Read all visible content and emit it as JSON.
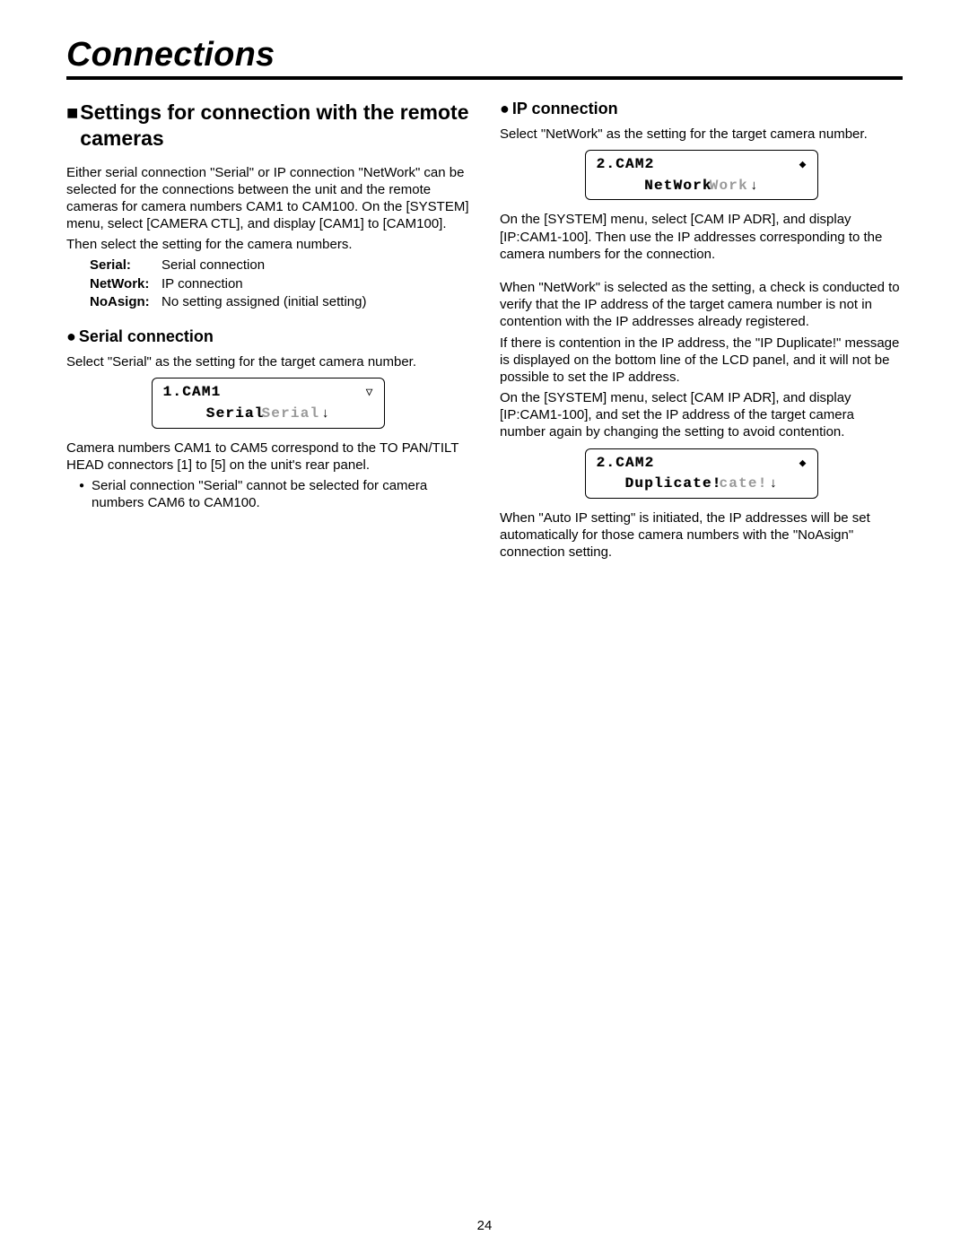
{
  "page_title": "Connections",
  "page_number": "24",
  "left": {
    "heading": "Settings for connection with the remote cameras",
    "intro": "Either serial connection \"Serial\" or IP connection \"NetWork\" can be selected for the connections between the unit and the remote cameras for camera numbers CAM1 to CAM100. On the [SYSTEM] menu, select [CAMERA CTL], and display [CAM1] to [CAM100].",
    "then_select": "Then select the setting for the camera numbers.",
    "defs": {
      "serial_k": "Serial:",
      "serial_v": "Serial connection",
      "network_k": "NetWork:",
      "network_v": "IP connection",
      "noasign_k": "NoAsign:",
      "noasign_v": "No setting assigned (initial setting)"
    },
    "sub_heading": "Serial connection",
    "serial_select": "Select \"Serial\" as the setting for the target camera number.",
    "lcd1": {
      "line1_label": "1.CAM1",
      "line1_arrow": "▽",
      "line2_main": "Serial",
      "line2_ghost": "Serial",
      "down": "↓"
    },
    "serial_para": "Camera numbers CAM1 to CAM5 correspond to the TO PAN/TILT HEAD connectors [1] to [5] on the unit's rear panel.",
    "serial_bullet": "Serial connection \"Serial\" cannot be selected for camera numbers CAM6 to CAM100."
  },
  "right": {
    "sub_heading": "IP connection",
    "ip_select": "Select \"NetWork\" as the setting for the target camera number.",
    "lcd2": {
      "line1_label": "2.CAM2",
      "line1_arrow": "◆",
      "line2_main": "NetWork",
      "line2_ghost": "Work",
      "down": "↓"
    },
    "para_a": "On the [SYSTEM] menu, select [CAM IP ADR], and display [IP:CAM1-100]. Then use the IP addresses corresponding to the camera numbers for the connection.",
    "para_b": "When \"NetWork\" is selected as the setting, a check is conducted to verify that the IP address of the target camera number is not in contention with the IP addresses already registered.",
    "para_c": "If there is contention in the IP address, the \"IP Duplicate!\" message is displayed on the bottom line of the LCD panel, and it will not be possible to set the IP address.",
    "para_d": "On the [SYSTEM] menu, select [CAM IP ADR], and display [IP:CAM1-100], and set the IP address of the target camera number again by changing the setting to avoid contention.",
    "lcd3": {
      "line1_label": "2.CAM2",
      "line1_arrow": "◆",
      "line2_main": "Duplicate!",
      "line2_ghost": "cate!",
      "down": "↓"
    },
    "para_e": "When \"Auto IP setting\" is initiated, the IP addresses will be set automatically for those camera numbers with the \"NoAsign\" connection setting."
  }
}
